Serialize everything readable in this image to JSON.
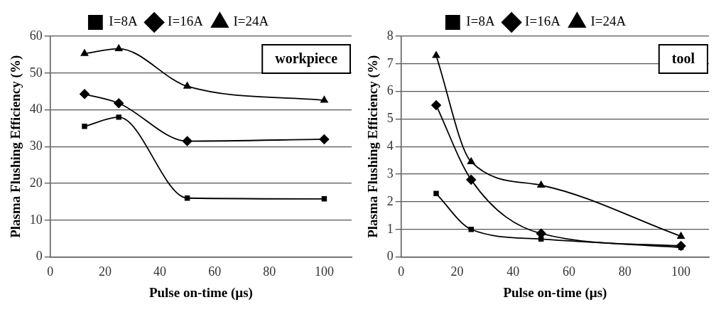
{
  "chart_data": [
    {
      "type": "line",
      "xlabel": "Pulse on-time (µs)",
      "ylabel": "Plasma Flushing Efficiency (%)",
      "annotations": [
        "workpiece"
      ],
      "xlim": [
        0,
        110
      ],
      "xticks": [
        0,
        20,
        40,
        60,
        80,
        100
      ],
      "ylim": [
        0,
        60
      ],
      "yticks": [
        0,
        10,
        20,
        30,
        40,
        50,
        60
      ],
      "grid": "y",
      "legend": "top",
      "x": [
        12.5,
        25,
        50,
        100
      ],
      "series": [
        {
          "name": "I=8A",
          "color": "#000000",
          "marker": "square",
          "values": [
            35.5,
            38,
            16,
            15.8
          ]
        },
        {
          "name": "I=16A",
          "color": "#000000",
          "marker": "diamond",
          "values": [
            44.3,
            41.8,
            31.5,
            32
          ]
        },
        {
          "name": "I=24A",
          "color": "#000000",
          "marker": "triangle",
          "values": [
            55.3,
            56.6,
            46.4,
            42.6
          ]
        }
      ]
    },
    {
      "type": "line",
      "xlabel": "Pulse on-time (µs)",
      "ylabel": "Plasma Flushing Efficiency (%)",
      "annotations": [
        "tool"
      ],
      "xlim": [
        0,
        110
      ],
      "xticks": [
        0,
        20,
        40,
        60,
        80,
        100
      ],
      "ylim": [
        0,
        8
      ],
      "yticks": [
        0,
        1,
        2,
        3,
        4,
        5,
        6,
        7,
        8
      ],
      "grid": "y",
      "legend": "top",
      "x": [
        12.5,
        25,
        50,
        100
      ],
      "series": [
        {
          "name": "I=8A",
          "color": "#000000",
          "marker": "square",
          "values": [
            2.3,
            1.0,
            0.65,
            0.35
          ]
        },
        {
          "name": "I=16A",
          "color": "#000000",
          "marker": "diamond",
          "values": [
            5.5,
            2.8,
            0.85,
            0.4
          ]
        },
        {
          "name": "I=24A",
          "color": "#000000",
          "marker": "triangle",
          "values": [
            7.3,
            3.45,
            2.6,
            0.75
          ]
        }
      ]
    }
  ]
}
